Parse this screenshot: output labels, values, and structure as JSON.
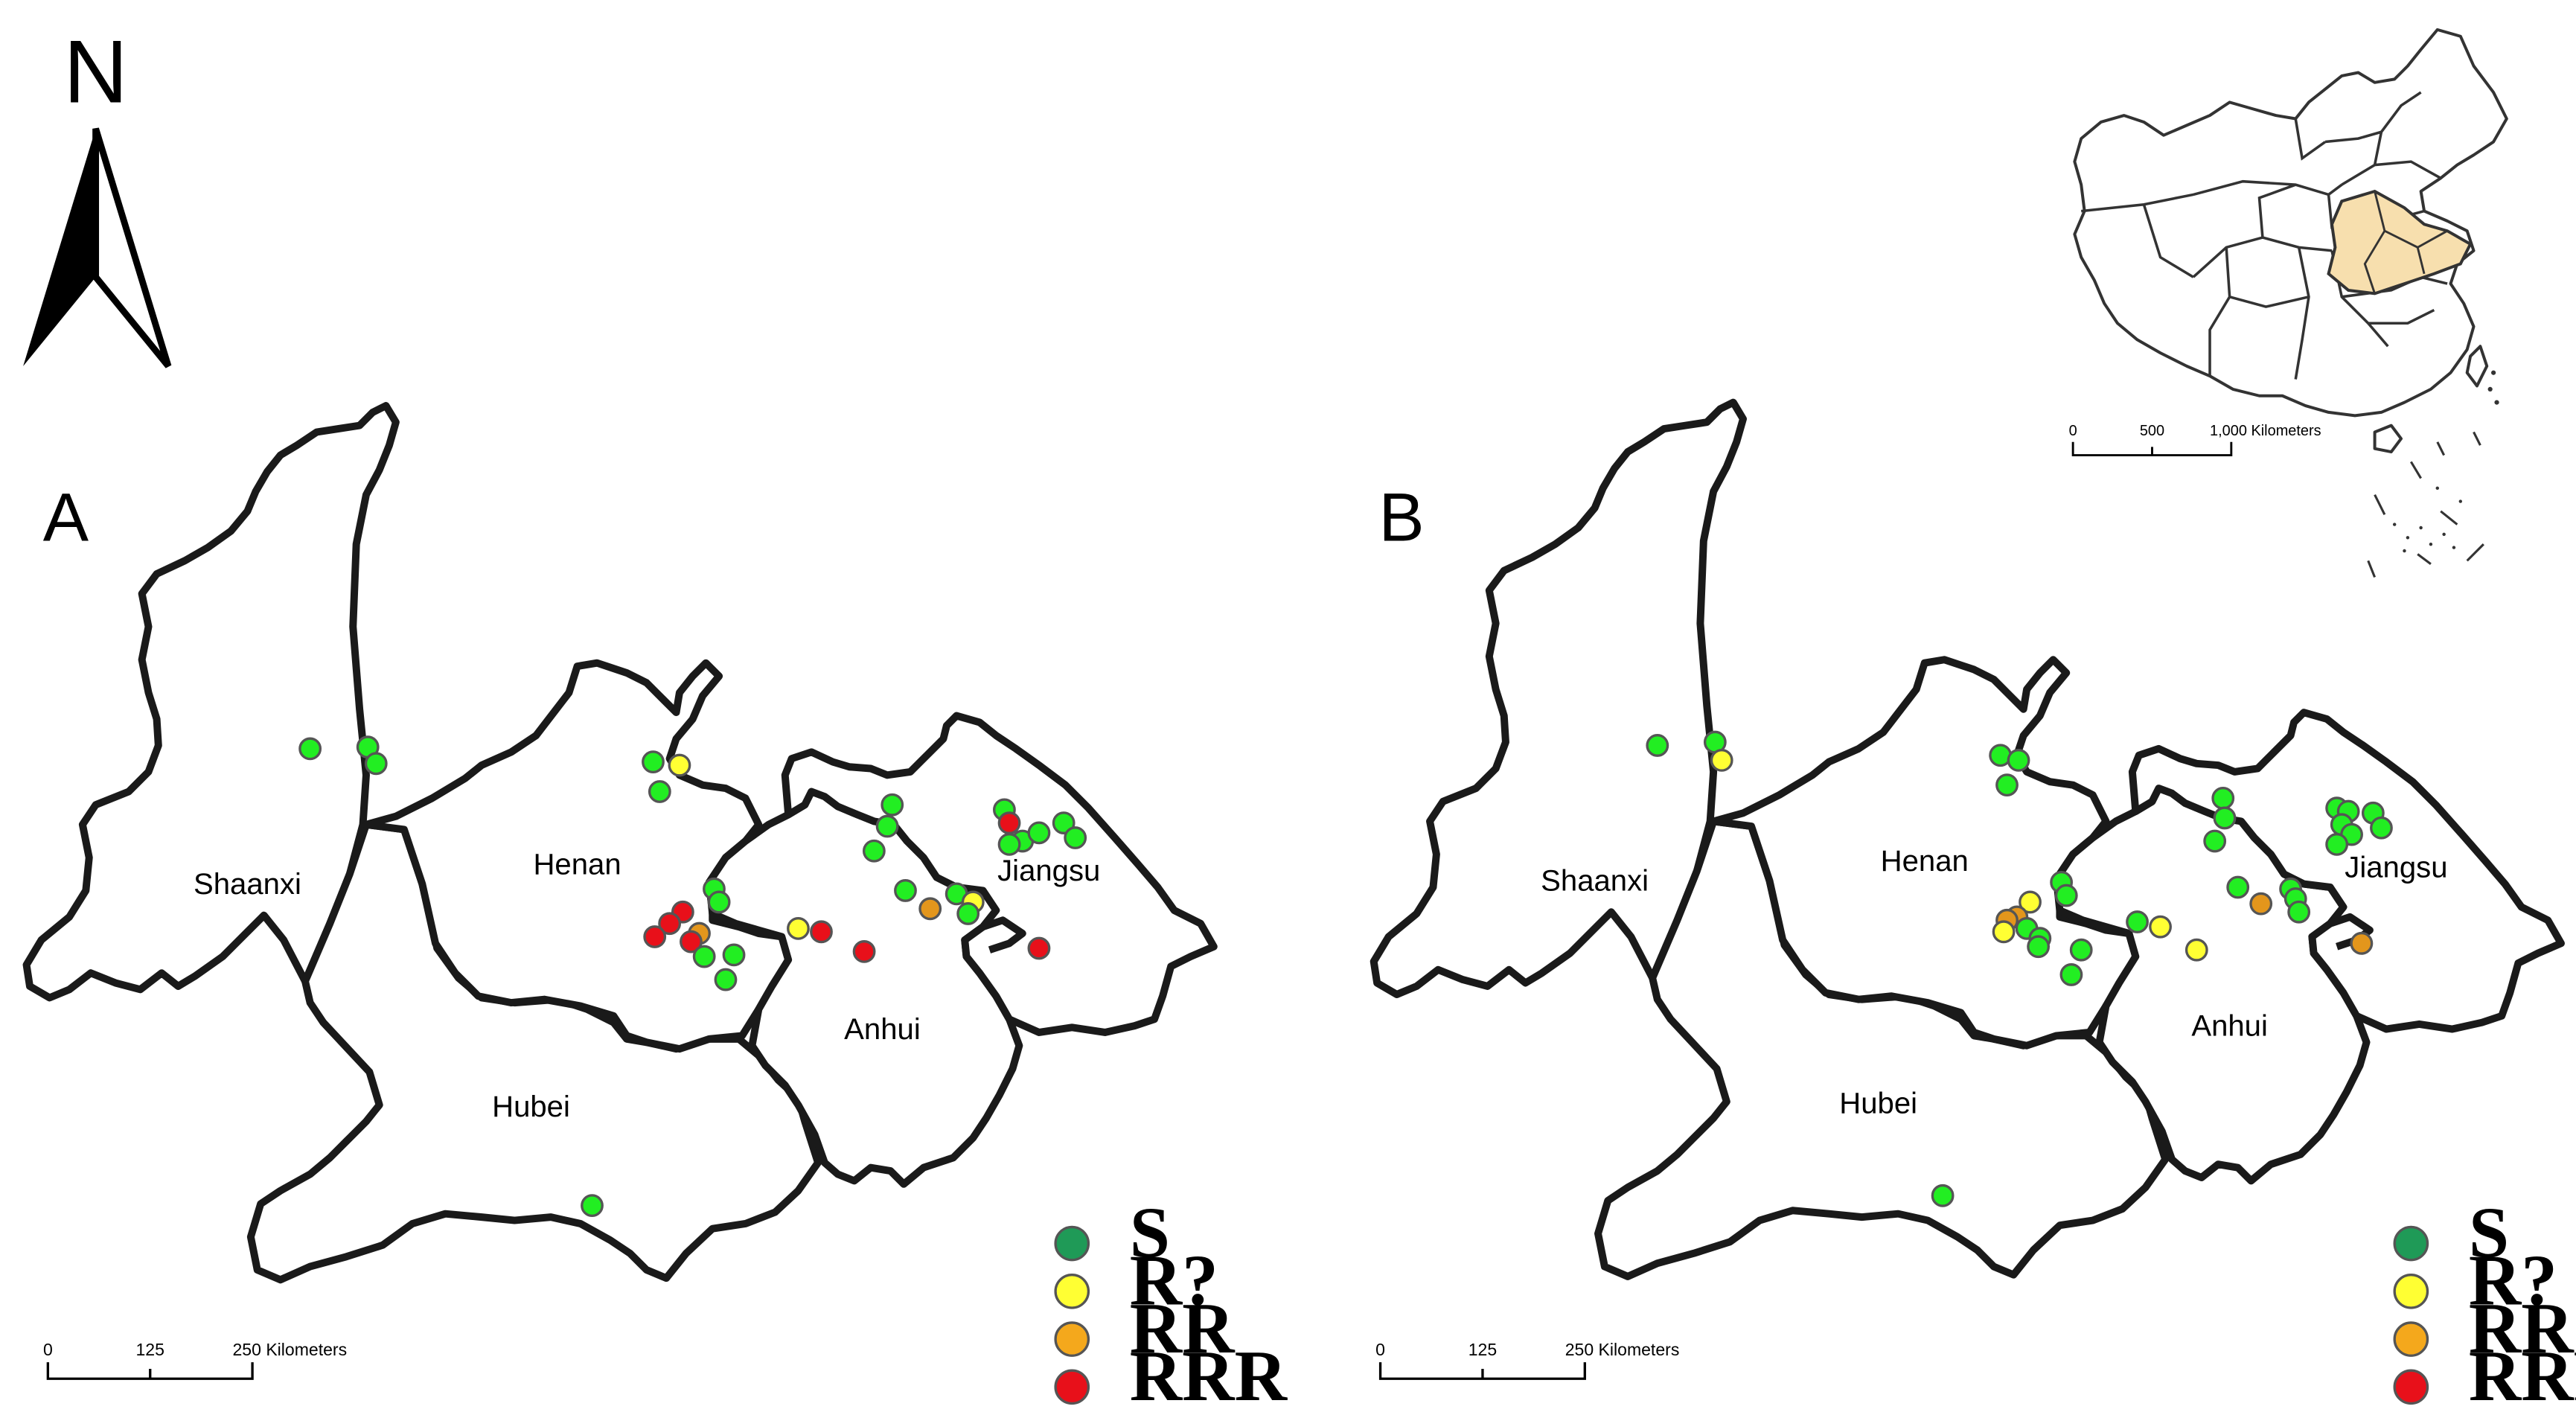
{
  "north_arrow": {
    "letter": "N"
  },
  "panels": [
    {
      "id": "A",
      "letter": "A",
      "province_labels": [
        "Shaanxi",
        "Henan",
        "Jiangsu",
        "Anhui",
        "Hubei"
      ],
      "sites": [
        [
          "S",
          188,
          454
        ],
        [
          "S",
          223,
          453
        ],
        [
          "S",
          228,
          463
        ],
        [
          "S",
          396,
          462
        ],
        [
          "R?",
          412,
          464
        ],
        [
          "S",
          400,
          480
        ],
        [
          "S",
          541,
          488
        ],
        [
          "S",
          538,
          501
        ],
        [
          "S",
          530,
          516
        ],
        [
          "S",
          609,
          491
        ],
        [
          "S",
          620,
          510
        ],
        [
          "S",
          630,
          505
        ],
        [
          "S",
          612,
          512
        ],
        [
          "S",
          645,
          499
        ],
        [
          "S",
          652,
          508
        ],
        [
          "RRR",
          612,
          499
        ],
        [
          "S",
          549,
          540
        ],
        [
          "S",
          580,
          542
        ],
        [
          "R?",
          590,
          547
        ],
        [
          "S",
          587,
          554
        ],
        [
          "RR",
          564,
          551
        ],
        [
          "R?",
          484,
          563
        ],
        [
          "RRR",
          498,
          565
        ],
        [
          "RRR",
          524,
          577
        ],
        [
          "RRR",
          630,
          575
        ],
        [
          "S",
          433,
          539
        ],
        [
          "S",
          436,
          547
        ],
        [
          "RRR",
          414,
          553
        ],
        [
          "RRR",
          406,
          560
        ],
        [
          "RRR",
          397,
          568
        ],
        [
          "RR",
          424,
          566
        ],
        [
          "RRR",
          419,
          571
        ],
        [
          "S",
          427,
          580
        ],
        [
          "S",
          445,
          579
        ],
        [
          "S",
          440,
          594
        ],
        [
          "S",
          359,
          731
        ]
      ],
      "legend": [
        "S",
        "R?",
        "RR",
        "RRR"
      ],
      "scale": {
        "ticks": [
          "0",
          "125",
          "250 Kilometers"
        ]
      }
    },
    {
      "id": "B",
      "letter": "B",
      "province_labels": [
        "Shaanxi",
        "Henan",
        "Jiangsu",
        "Anhui",
        "Hubei"
      ],
      "sites": [
        [
          "S",
          188,
          454
        ],
        [
          "S",
          223,
          452
        ],
        [
          "R?",
          227,
          463
        ],
        [
          "S",
          396,
          460
        ],
        [
          "S",
          407,
          463
        ],
        [
          "S",
          400,
          478
        ],
        [
          "S",
          531,
          486
        ],
        [
          "S",
          532,
          498
        ],
        [
          "S",
          526,
          512
        ],
        [
          "S",
          600,
          492
        ],
        [
          "S",
          607,
          494
        ],
        [
          "S",
          622,
          495
        ],
        [
          "S",
          603,
          502
        ],
        [
          "S",
          609,
          508
        ],
        [
          "S",
          627,
          504
        ],
        [
          "S",
          600,
          514
        ],
        [
          "S",
          433,
          537
        ],
        [
          "S",
          436,
          545
        ],
        [
          "R?",
          414,
          549
        ],
        [
          "RR",
          406,
          558
        ],
        [
          "RR",
          400,
          560
        ],
        [
          "R?",
          398,
          567
        ],
        [
          "S",
          412,
          565
        ],
        [
          "S",
          420,
          571
        ],
        [
          "S",
          419,
          576
        ],
        [
          "S",
          445,
          578
        ],
        [
          "S",
          439,
          593
        ],
        [
          "S",
          479,
          561
        ],
        [
          "R?",
          493,
          564
        ],
        [
          "R?",
          515,
          578
        ],
        [
          "S",
          540,
          540
        ],
        [
          "RR",
          554,
          550
        ],
        [
          "S",
          572,
          541
        ],
        [
          "S",
          575,
          547
        ],
        [
          "S",
          577,
          555
        ],
        [
          "RR",
          615,
          574
        ],
        [
          "S",
          361,
          727
        ]
      ],
      "legend": [
        "S",
        "R?",
        "RR",
        "RRR"
      ],
      "scale": {
        "ticks": [
          "0",
          "125",
          "250 Kilometers"
        ]
      }
    }
  ],
  "legend_colors": {
    "S": "#1f9a57",
    "R?": "#ffff33",
    "RR": "#f4a81c",
    "RRR": "#e8101a"
  },
  "site_colors": {
    "S": "#22ee22",
    "R?": "#ffff33",
    "RR": "#e3961c",
    "RRR": "#e8101a"
  },
  "inset_map": {
    "highlight_color": "#f7dfae",
    "scale": {
      "ticks": [
        "0",
        "500",
        "1,000 Kilometers"
      ]
    }
  }
}
